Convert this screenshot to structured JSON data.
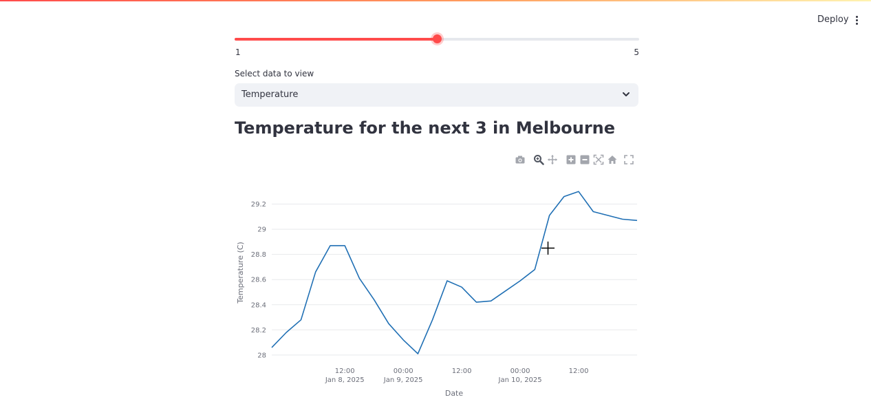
{
  "header": {
    "deploy_label": "Deploy",
    "menu_icon": "kebab-menu-icon"
  },
  "accent_color": "#ff4b4b",
  "slider": {
    "min_label": "1",
    "max_label": "5",
    "min": 1,
    "max": 5,
    "value": 3
  },
  "select": {
    "label": "Select data to view",
    "value": "Temperature",
    "icon": "chevron-down-icon"
  },
  "main": {
    "title": "Temperature for the next 3 in Melbourne"
  },
  "modebar": [
    "camera-icon",
    "zoom-icon",
    "pan-icon",
    "zoom-in-icon",
    "zoom-out-icon",
    "autoscale-icon",
    "home-icon",
    "fullscreen-icon"
  ],
  "chart_data": {
    "type": "line",
    "xlabel": "Date",
    "ylabel": "Temperature (C)",
    "line_color": "#1f6fb4",
    "ylim": [
      27.95,
      29.4
    ],
    "yticks": [
      28,
      28.2,
      28.4,
      28.6,
      28.8,
      29,
      29.2
    ],
    "ytick_labels": [
      "28",
      "28.2",
      "28.4",
      "28.6",
      "28.8",
      "29",
      "29.2"
    ],
    "xticks": [
      {
        "at": "2025-01-08 12:00",
        "line1": "12:00",
        "line2": "Jan 8, 2025"
      },
      {
        "at": "2025-01-09 00:00",
        "line1": "00:00",
        "line2": "Jan 9, 2025"
      },
      {
        "at": "2025-01-09 12:00",
        "line1": "12:00",
        "line2": ""
      },
      {
        "at": "2025-01-10 00:00",
        "line1": "00:00",
        "line2": "Jan 10, 2025"
      },
      {
        "at": "2025-01-10 12:00",
        "line1": "12:00",
        "line2": ""
      }
    ],
    "xlim": [
      "2025-01-07 21:00",
      "2025-01-11 00:00"
    ],
    "series": [
      {
        "x": [
          "2025-01-07 21:00",
          "2025-01-08 00:00",
          "2025-01-08 03:00",
          "2025-01-08 06:00",
          "2025-01-08 09:00",
          "2025-01-08 12:00",
          "2025-01-08 15:00",
          "2025-01-08 18:00",
          "2025-01-08 21:00",
          "2025-01-09 00:00",
          "2025-01-09 03:00",
          "2025-01-09 06:00",
          "2025-01-09 09:00",
          "2025-01-09 12:00",
          "2025-01-09 15:00",
          "2025-01-09 18:00",
          "2025-01-09 21:00",
          "2025-01-10 00:00",
          "2025-01-10 03:00",
          "2025-01-10 06:00",
          "2025-01-10 09:00",
          "2025-01-10 12:00",
          "2025-01-10 15:00",
          "2025-01-10 18:00",
          "2025-01-10 21:00",
          "2025-01-11 00:00"
        ],
        "y": [
          28.06,
          28.18,
          28.28,
          28.66,
          28.87,
          28.87,
          28.61,
          28.44,
          28.25,
          28.12,
          28.01,
          28.28,
          28.59,
          28.54,
          28.42,
          28.43,
          28.51,
          28.59,
          28.68,
          29.11,
          29.26,
          29.3,
          29.14,
          29.11,
          29.08,
          29.07
        ]
      }
    ]
  }
}
